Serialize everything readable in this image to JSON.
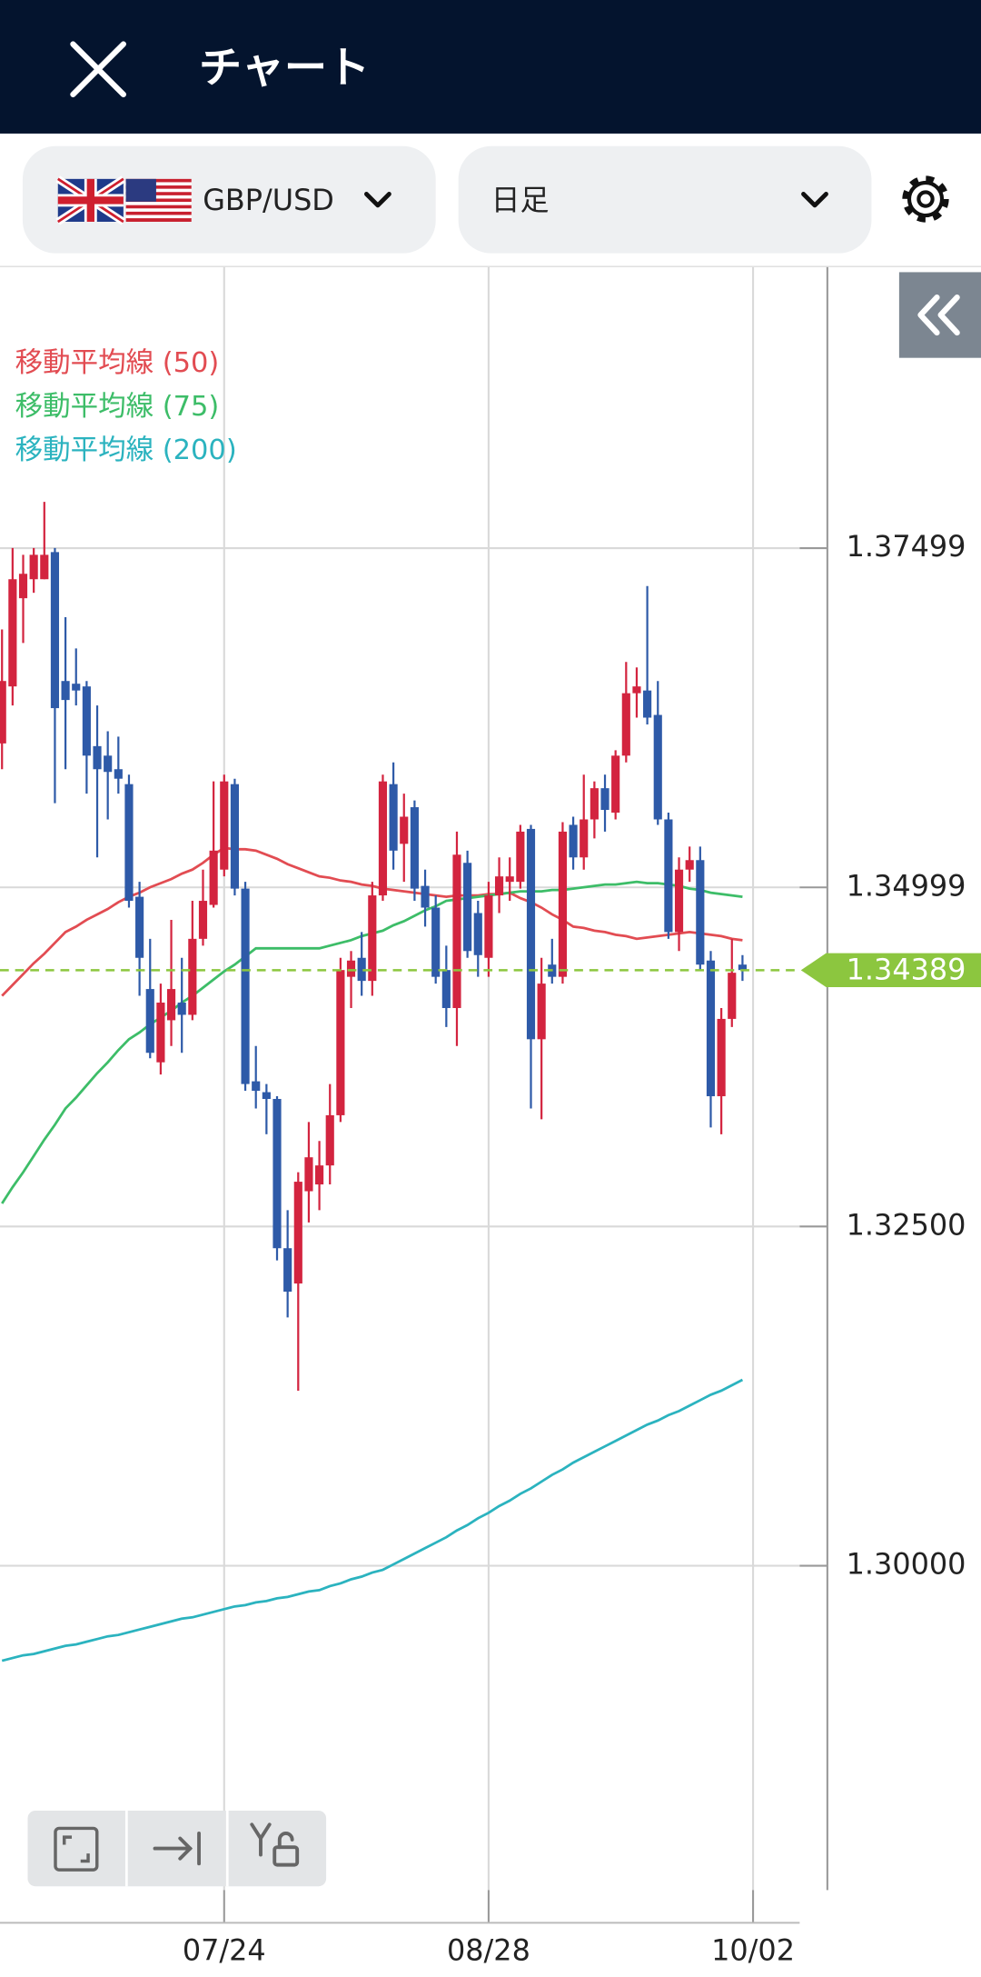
{
  "header": {
    "title": "チャート"
  },
  "toolbar": {
    "pair": "GBP/USD",
    "timeframe": "日足"
  },
  "chart_data": {
    "type": "candlestick",
    "categories": [
      null,
      null,
      null,
      null,
      null,
      null,
      null,
      null,
      null,
      null,
      null,
      null,
      null,
      null,
      null,
      null,
      null,
      null,
      null,
      null,
      null,
      "07/24",
      null,
      null,
      null,
      null,
      null,
      null,
      null,
      null,
      null,
      null,
      null,
      null,
      null,
      null,
      null,
      null,
      null,
      null,
      null,
      null,
      null,
      null,
      null,
      null,
      "08/28",
      null,
      null,
      null,
      null,
      null,
      null,
      null,
      null,
      null,
      null,
      null,
      null,
      null,
      null,
      null,
      null,
      null,
      null,
      null,
      null,
      null,
      null,
      null,
      null,
      "10/02"
    ],
    "open": [
      1.3606,
      1.3648,
      1.3713,
      1.3727,
      1.3727,
      1.3747,
      1.3652,
      1.365,
      1.3648,
      1.3604,
      1.3597,
      1.3587,
      1.3576,
      1.3493,
      1.3425,
      1.3371,
      1.3402,
      1.3415,
      1.3406,
      1.3462,
      1.3487,
      1.3513,
      1.3576,
      1.3499,
      1.3357,
      1.3349,
      1.3344,
      1.3234,
      1.3208,
      1.3276,
      1.3281,
      1.3295,
      1.3332,
      1.3434,
      1.3448,
      1.3431,
      1.3494,
      1.3576,
      1.3532,
      1.3559,
      1.3501,
      1.3485,
      1.3439,
      1.3411,
      1.3518,
      1.3481,
      1.3448,
      1.3494,
      1.3504,
      1.3504,
      1.3543,
      1.3388,
      1.3443,
      1.3434,
      1.3546,
      1.3522,
      1.355,
      1.3573,
      1.3555,
      1.3597,
      1.3643,
      1.3645,
      1.3627,
      1.355,
      1.3467,
      1.3513,
      1.352,
      1.3446,
      1.3346,
      1.3403,
      1.3443,
      null
    ],
    "high": [
      1.369,
      1.375,
      1.3745,
      1.375,
      1.3784,
      1.375,
      1.3699,
      1.3676,
      1.3652,
      1.3634,
      1.3615,
      1.3611,
      1.3583,
      1.3504,
      1.3462,
      1.3429,
      1.3476,
      1.3448,
      1.349,
      1.3513,
      1.3578,
      1.3583,
      1.358,
      1.3504,
      1.3383,
      1.3355,
      1.3346,
      1.3262,
      1.329,
      1.3327,
      1.3313,
      1.3355,
      1.3448,
      1.3453,
      1.3467,
      1.3504,
      1.3583,
      1.3592,
      1.3569,
      1.3564,
      1.3513,
      1.3494,
      1.3457,
      1.3541,
      1.3527,
      1.349,
      1.3504,
      1.3522,
      1.3522,
      1.3546,
      1.3546,
      1.3448,
      1.3462,
      1.3548,
      1.3552,
      1.3583,
      1.3578,
      1.3583,
      1.3601,
      1.3666,
      1.3662,
      1.3722,
      1.3652,
      1.3555,
      1.3522,
      1.353,
      1.353,
      1.3453,
      1.3411,
      1.3462,
      1.345,
      null
    ],
    "low": [
      1.3587,
      1.3634,
      1.368,
      1.3717,
      1.3727,
      1.3562,
      1.3587,
      1.3634,
      1.3569,
      1.3522,
      1.355,
      1.3569,
      1.3485,
      1.342,
      1.3374,
      1.3362,
      1.3383,
      1.3378,
      1.3402,
      1.3457,
      1.3485,
      1.3508,
      1.3494,
      1.335,
      1.3337,
      1.3318,
      1.3225,
      1.3183,
      1.3129,
      1.3253,
      1.3262,
      1.3281,
      1.3327,
      1.3411,
      1.342,
      1.342,
      1.349,
      1.3513,
      1.3504,
      1.349,
      1.3471,
      1.3429,
      1.3397,
      1.3383,
      1.3448,
      1.3434,
      1.3434,
      1.3481,
      1.349,
      1.3499,
      1.3337,
      1.3329,
      1.3429,
      1.3429,
      1.3513,
      1.3513,
      1.3536,
      1.3541,
      1.355,
      1.3592,
      1.3625,
      1.362,
      1.3546,
      1.3462,
      1.3453,
      1.3504,
      1.3439,
      1.3323,
      1.3318,
      1.3397,
      1.3431,
      null
    ],
    "close": [
      1.3652,
      1.3727,
      1.3731,
      1.3745,
      1.3745,
      1.3632,
      1.3638,
      1.3645,
      1.3597,
      1.3587,
      1.3585,
      1.358,
      1.349,
      1.3448,
      1.3378,
      1.3415,
      1.3425,
      1.3406,
      1.3462,
      1.349,
      1.3527,
      1.3578,
      1.3499,
      1.3355,
      1.335,
      1.3344,
      1.3234,
      1.3202,
      1.3283,
      1.3301,
      1.3295,
      1.3332,
      1.3439,
      1.3446,
      1.3431,
      1.3494,
      1.3578,
      1.3527,
      1.3552,
      1.3499,
      1.3485,
      1.3434,
      1.3411,
      1.3524,
      1.3453,
      1.345,
      1.3494,
      1.3508,
      1.3508,
      1.3541,
      1.3388,
      1.3429,
      1.3434,
      1.3541,
      1.3522,
      1.355,
      1.3573,
      1.3557,
      1.3597,
      1.3643,
      1.3648,
      1.3625,
      1.355,
      1.3467,
      1.3513,
      1.352,
      1.3443,
      1.3346,
      1.3403,
      1.3437,
      1.3439,
      null
    ],
    "up_color": "#d3243f",
    "down_color": "#2e5aa8",
    "series": [
      {
        "name": "移動平均線 (50)",
        "color": "#e24c52",
        "values": [
          1.342,
          1.3428,
          1.3436,
          1.3444,
          1.3451,
          1.3459,
          1.3467,
          1.3471,
          1.3476,
          1.348,
          1.3484,
          1.3489,
          1.3493,
          1.3496,
          1.35,
          1.3503,
          1.3506,
          1.351,
          1.3513,
          1.3518,
          1.3524,
          1.3529,
          1.3528,
          1.3528,
          1.3527,
          1.3524,
          1.3521,
          1.3517,
          1.3514,
          1.3511,
          1.3508,
          1.3507,
          1.3505,
          1.3504,
          1.3502,
          1.3501,
          1.3499,
          1.3498,
          1.3497,
          1.3496,
          1.3495,
          1.3494,
          1.3493,
          1.3494,
          1.3494,
          1.3494,
          1.3495,
          1.3495,
          1.3496,
          1.3492,
          1.3489,
          1.3485,
          1.348,
          1.3476,
          1.3471,
          1.347,
          1.3468,
          1.3467,
          1.3465,
          1.3464,
          1.3462,
          1.3463,
          1.3464,
          1.3465,
          1.3466,
          1.3467,
          1.3466,
          1.3465,
          1.3464,
          1.3462,
          1.3461,
          null
        ]
      },
      {
        "name": "移動平均線 (75)",
        "color": "#3dbd68",
        "values": [
          1.3267,
          1.3279,
          1.329,
          1.3302,
          1.3314,
          1.3325,
          1.3337,
          1.3345,
          1.3354,
          1.3363,
          1.3371,
          1.338,
          1.3388,
          1.3393,
          1.3399,
          1.3404,
          1.3409,
          1.3415,
          1.342,
          1.3426,
          1.3432,
          1.3438,
          1.3443,
          1.3449,
          1.3455,
          1.3455,
          1.3455,
          1.3455,
          1.3455,
          1.3455,
          1.3455,
          1.3457,
          1.3459,
          1.3461,
          1.3464,
          1.3466,
          1.3468,
          1.3472,
          1.3475,
          1.3479,
          1.3483,
          1.3486,
          1.349,
          1.3491,
          1.3492,
          1.3493,
          1.3494,
          1.3495,
          1.3496,
          1.3497,
          1.3497,
          1.3497,
          1.3498,
          1.3498,
          1.3499,
          1.35,
          1.3501,
          1.3502,
          1.3502,
          1.3503,
          1.3504,
          1.3503,
          1.3503,
          1.3502,
          1.3501,
          1.3499,
          1.3498,
          1.3496,
          1.3495,
          1.3494,
          1.3493,
          null
        ]
      },
      {
        "name": "移動平均線 (200)",
        "color": "#2bb3bf",
        "values": [
          1.293,
          1.2932,
          1.2934,
          1.2935,
          1.2937,
          1.2939,
          1.2941,
          1.2942,
          1.2944,
          1.2946,
          1.2948,
          1.2949,
          1.2951,
          1.2953,
          1.2955,
          1.2957,
          1.2959,
          1.2961,
          1.2962,
          1.2964,
          1.2966,
          1.2968,
          1.297,
          1.2971,
          1.2973,
          1.2974,
          1.2976,
          1.2977,
          1.2979,
          1.2981,
          1.2982,
          1.2985,
          1.2987,
          1.299,
          1.2992,
          1.2995,
          1.2997,
          1.3001,
          1.3005,
          1.3009,
          1.3013,
          1.3017,
          1.3021,
          1.3026,
          1.303,
          1.3035,
          1.3039,
          1.3044,
          1.3048,
          1.3053,
          1.3057,
          1.3062,
          1.3067,
          1.3071,
          1.3076,
          1.308,
          1.3084,
          1.3088,
          1.3092,
          1.3096,
          1.31,
          1.3104,
          1.3107,
          1.3111,
          1.3114,
          1.3118,
          1.3122,
          1.3126,
          1.3129,
          1.3133,
          1.3137,
          null
        ]
      }
    ],
    "ylim": [
      1.2761,
      1.3957
    ],
    "yticks": [
      {
        "value": 1.3,
        "label": "1.30000"
      },
      {
        "value": 1.325,
        "label": "1.32500"
      },
      1.34999,
      1.37499
    ],
    "grid": true,
    "legend": "top-left",
    "last_price": 1.34389,
    "last_price_color": "#8cc63f"
  }
}
